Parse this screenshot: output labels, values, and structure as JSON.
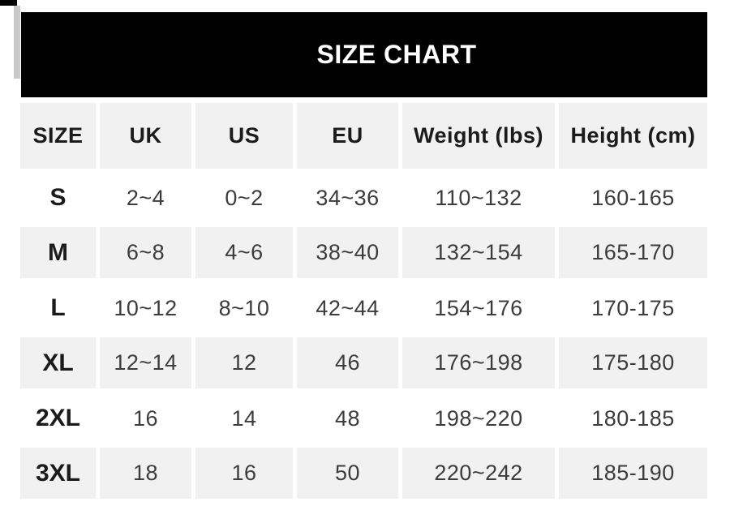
{
  "title": "SIZE CHART",
  "chart_data": {
    "type": "table",
    "title": "SIZE CHART",
    "columns": [
      "SIZE",
      "UK",
      "US",
      "EU",
      "Weight (lbs)",
      "Height (cm)"
    ],
    "rows": [
      [
        "S",
        "2~4",
        "0~2",
        "34~36",
        "110~132",
        "160-165"
      ],
      [
        "M",
        "6~8",
        "4~6",
        "38~40",
        "132~154",
        "165-170"
      ],
      [
        "L",
        "10~12",
        "8~10",
        "42~44",
        "154~176",
        "170-175"
      ],
      [
        "XL",
        "12~14",
        "12",
        "46",
        "176~198",
        "175-180"
      ],
      [
        "2XL",
        "16",
        "14",
        "48",
        "198~220",
        "180-185"
      ],
      [
        "3XL",
        "18",
        "16",
        "50",
        "220~242",
        "185-190"
      ]
    ]
  },
  "colors": {
    "banner_bg": "#010101",
    "banner_text": "#ffffff",
    "stripe_bg": "#f1f1f1",
    "header_text": "#1b1b1b",
    "data_text": "#3c3c3c",
    "edge_sliver": "#c9c9c9"
  }
}
